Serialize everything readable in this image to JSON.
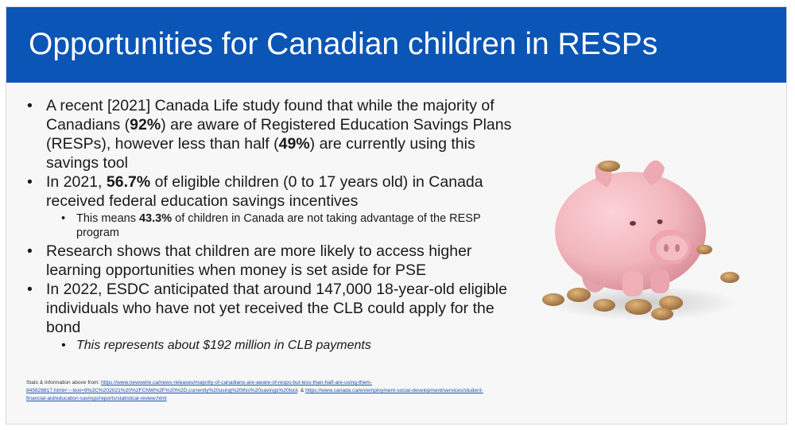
{
  "slide": {
    "title": "Opportunities for Canadian children in RESPs",
    "bullets": [
      {
        "type": "main",
        "parts": [
          {
            "t": "A recent [2021] Canada Life study found that while the majority of Canadians ("
          },
          {
            "t": "92%",
            "bold": true
          },
          {
            "t": ") are aware of Registered Education Savings Plans (RESPs), however less than half ("
          },
          {
            "t": "49%",
            "bold": true
          },
          {
            "t": ") are currently using this savings tool"
          }
        ]
      },
      {
        "type": "main",
        "parts": [
          {
            "t": "In 2021, "
          },
          {
            "t": "56.7%",
            "bold": true
          },
          {
            "t": " of eligible children (0 to 17 years old) in Canada received federal education savings incentives"
          }
        ]
      },
      {
        "type": "sub",
        "parts": [
          {
            "t": "This means "
          },
          {
            "t": "43.3%",
            "bold": true
          },
          {
            "t": " of children in Canada are not taking advantage of the RESP program"
          }
        ]
      },
      {
        "type": "main",
        "parts": [
          {
            "t": "Research shows that children are more likely to access higher learning opportunities when money is set aside for PSE"
          }
        ]
      },
      {
        "type": "main",
        "parts": [
          {
            "t": "In 2022, ESDC anticipated that around 147,000 18-year-old eligible individuals who have not yet received the CLB could apply for the bond"
          }
        ]
      },
      {
        "type": "sub-italic",
        "parts": [
          {
            "t": "This represents about $192 million in CLB payments"
          }
        ]
      }
    ],
    "footnote": {
      "prefix": "Stats & information above from: ",
      "link1": "https://www.newswire.ca/news-releases/majority-of-canadians-are-aware-of-resps-but-less-than-half-are-using-them-845628817.html#:~:text=9%2C%202021%20%2FCNW%2F%20%2D,currently%20using%20this%20savings%20tool",
      "separator": ". & ",
      "link2": "https://www.canada.ca/en/employment-social-development/services/student-financial-aid/education-savings/reports/statistical-review.html"
    },
    "image_icon": "piggy-bank-icon",
    "colors": {
      "banner": "#0a55b5",
      "title_text": "#ffffff",
      "link": "#1f4fb0",
      "pig": "#f2b6bd",
      "coin": "#b98a4e"
    }
  }
}
